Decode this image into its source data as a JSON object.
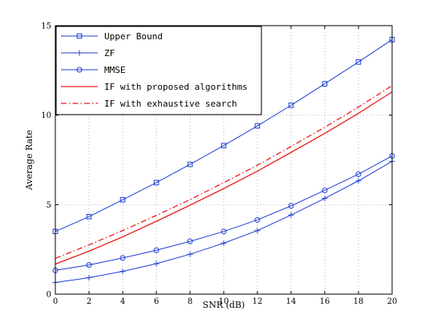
{
  "chart_data": {
    "type": "line",
    "title": "",
    "xlabel": "SNR (dB)",
    "ylabel": "Average Rate",
    "xlim": [
      0,
      20
    ],
    "ylim": [
      0,
      15
    ],
    "xticks": [
      0,
      2,
      4,
      6,
      8,
      10,
      12,
      14,
      16,
      18,
      20
    ],
    "yticks": [
      0,
      5,
      10,
      15
    ],
    "grid": true,
    "legend_position": "top-left",
    "x": [
      0,
      2,
      4,
      6,
      8,
      10,
      12,
      14,
      16,
      18,
      20
    ],
    "series": [
      {
        "name": "Upper Bound",
        "color": "#1f3fd6",
        "style": "solid",
        "marker": "square",
        "values": [
          3.5,
          4.33,
          5.27,
          6.23,
          7.25,
          8.3,
          9.4,
          10.55,
          11.75,
          12.97,
          14.22
        ]
      },
      {
        "name": "ZF",
        "color": "#1f3fd6",
        "style": "solid",
        "marker": "plus",
        "values": [
          0.65,
          0.92,
          1.27,
          1.7,
          2.23,
          2.85,
          3.55,
          4.42,
          5.35,
          6.33,
          7.42
        ]
      },
      {
        "name": "MMSE",
        "color": "#1f3fd6",
        "style": "solid",
        "marker": "circle",
        "values": [
          1.33,
          1.63,
          2.02,
          2.45,
          2.95,
          3.5,
          4.15,
          4.93,
          5.8,
          6.7,
          7.72
        ]
      },
      {
        "name": "IF with proposed algorithms",
        "color": "#e8201a",
        "style": "solid",
        "marker": "none",
        "values": [
          1.68,
          2.4,
          3.2,
          4.07,
          4.97,
          5.9,
          6.87,
          7.92,
          8.98,
          10.1,
          11.3
        ]
      },
      {
        "name": "IF with exhaustive search",
        "color": "#e8201a",
        "style": "dashdot",
        "marker": "none",
        "values": [
          2.0,
          2.75,
          3.55,
          4.4,
          5.28,
          6.23,
          7.2,
          8.25,
          9.32,
          10.45,
          11.65
        ]
      }
    ]
  }
}
